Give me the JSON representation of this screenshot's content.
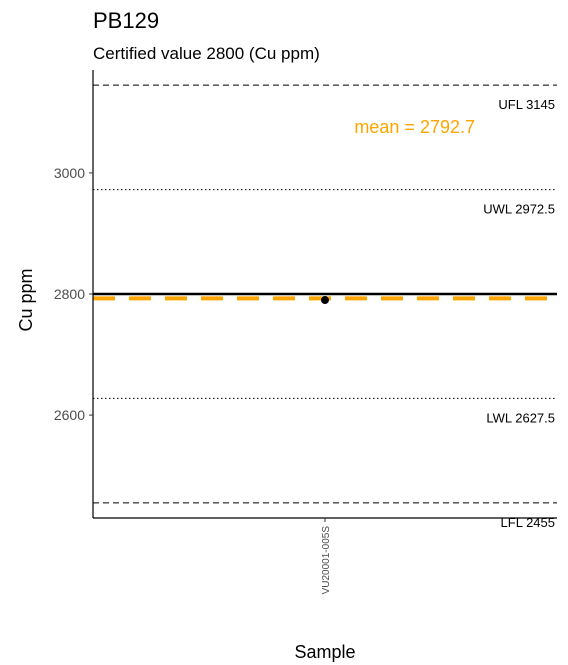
{
  "chart_data": {
    "type": "scatter",
    "title": "PB129",
    "subtitle": "Certified value 2800 (Cu ppm)",
    "xlabel": "Sample",
    "ylabel": "Cu ppm",
    "categories": [
      "VU20001-005S"
    ],
    "values": [
      2790
    ],
    "ylim": [
      2430,
      3170
    ],
    "yticks": [
      2600,
      2800,
      3000
    ],
    "grid": false,
    "certified_value": 2800,
    "mean": {
      "value": 2792.7,
      "label": "mean = ",
      "label_value": "2792.7",
      "color": "#FFA500"
    },
    "limits": [
      {
        "name": "UFL",
        "value": 3145,
        "display": "3145",
        "style": "dashed"
      },
      {
        "name": "UWL",
        "value": 2972.5,
        "display": "2972.5",
        "style": "dotted"
      },
      {
        "name": "LWL",
        "value": 2627.5,
        "display": "2627.5",
        "style": "dotted"
      },
      {
        "name": "LFL",
        "value": 2455,
        "display": "2455",
        "style": "dashed"
      }
    ],
    "colors": {
      "point": "#000000",
      "certified_line": "#000000",
      "limit_line": "#000000",
      "axis": "#000000",
      "mean_line": "#FFA500"
    }
  }
}
